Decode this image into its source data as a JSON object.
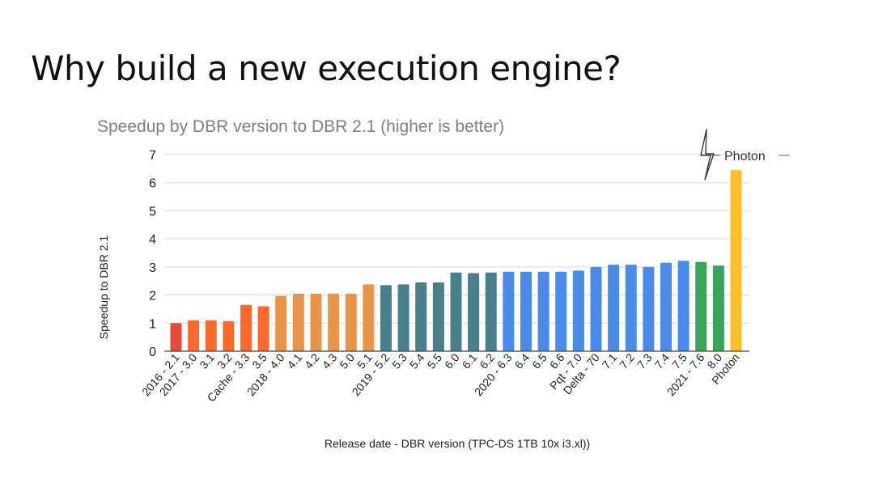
{
  "slide": {
    "title": "Why build a new execution engine?"
  },
  "logo": {
    "text": "Photon",
    "icon": "lightning-bolt-icon"
  },
  "chart_data": {
    "type": "bar",
    "title": "Speedup by DBR version to DBR 2.1 (higher is better)",
    "xlabel": "Release date - DBR version (TPC-DS 1TB 10x i3.xl))",
    "ylabel": "Speedup to DBR 2.1",
    "ylim": [
      0,
      7
    ],
    "yticks": [
      0,
      1,
      2,
      3,
      4,
      5,
      6,
      7
    ],
    "grid": true,
    "categories": [
      "2016 - 2.1",
      "2017 - 3.0",
      "3.1",
      "3.2",
      "Cache - 3.3",
      "3.5",
      "2018 - 4.0",
      "4.1",
      "4.2",
      "4.3",
      "5.0",
      "5.1",
      "2019 - 5.2",
      "5.3",
      "5.4",
      "5.5",
      "6.0",
      "6.1",
      "6.2",
      "2020 - 6.3",
      "6.4",
      "6.5",
      "6.6",
      "Pqt - 7.0",
      "Delta - 70",
      "7.1",
      "7.2",
      "7.3",
      "7.4",
      "7.5",
      "2021 - 7.6",
      "8.0",
      "Photon"
    ],
    "values": [
      1.0,
      1.1,
      1.1,
      1.07,
      1.65,
      1.6,
      1.97,
      2.05,
      2.05,
      2.05,
      2.05,
      2.38,
      2.35,
      2.38,
      2.45,
      2.45,
      2.8,
      2.78,
      2.8,
      2.83,
      2.83,
      2.83,
      2.83,
      2.87,
      3.0,
      3.08,
      3.08,
      3.0,
      3.15,
      3.22,
      3.18,
      3.05,
      6.45
    ],
    "colors": [
      "#e64a3a",
      "#fb6a2c",
      "#fb6a2c",
      "#fb6a2c",
      "#fb6a2c",
      "#fb6a2c",
      "#e8954a",
      "#e8954a",
      "#e8954a",
      "#e8954a",
      "#e8954a",
      "#e8954a",
      "#4a7f8c",
      "#4a7f8c",
      "#4a7f8c",
      "#4a7f8c",
      "#4a7f8c",
      "#4a7f8c",
      "#4a7f8c",
      "#4a8ae8",
      "#4a8ae8",
      "#4a8ae8",
      "#4a8ae8",
      "#4a8ae8",
      "#4a8ae8",
      "#4a8ae8",
      "#4a8ae8",
      "#4a8ae8",
      "#4a8ae8",
      "#4a8ae8",
      "#3aa55a",
      "#3aa55a",
      "#fbbf2c"
    ]
  }
}
